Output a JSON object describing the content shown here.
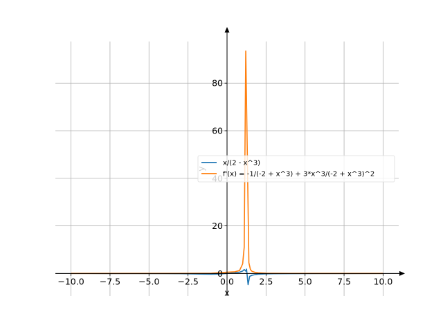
{
  "chart_data": {
    "type": "line",
    "title": "",
    "xlabel": "x",
    "ylabel": "y",
    "xlim": [
      -11.0,
      11.0
    ],
    "ylim": [
      -9.5,
      101
    ],
    "grid": true,
    "legend_position": "center-right",
    "x_ticks": [
      -10,
      -7.5,
      -5,
      -2.5,
      0,
      2.5,
      5,
      7.5,
      10
    ],
    "x_tick_labels": [
      "−10.0",
      "−7.5",
      "−5.0",
      "−2.5",
      "0.0",
      "2.5",
      "5.0",
      "7.5",
      "10.0"
    ],
    "y_ticks": [
      0,
      20,
      40,
      60,
      80
    ],
    "y_tick_labels": [
      "0",
      "20",
      "40",
      "60",
      "80"
    ],
    "series": [
      {
        "name": "x/(2 - x^3)",
        "color": "#1f77b4",
        "x": [
          -10,
          -8,
          -6,
          -4,
          -3,
          -2,
          -1.5,
          -1,
          -0.5,
          0,
          0.5,
          0.8,
          1.0,
          1.1,
          1.2,
          1.25,
          1.35,
          1.45,
          1.6,
          1.8,
          2.0,
          2.5,
          3,
          4,
          6,
          8,
          10
        ],
        "y": [
          -0.01,
          -0.016,
          -0.028,
          -0.061,
          -0.103,
          -0.2,
          -0.28,
          -0.333,
          -0.235,
          0,
          0.267,
          0.536,
          1.0,
          1.648,
          1.0,
          1.8,
          -4.7,
          -1.2,
          -0.77,
          -0.49,
          -0.333,
          -0.18,
          -0.12,
          -0.065,
          -0.028,
          -0.016,
          -0.01
        ]
      },
      {
        "name": "f'(x) = -1/(-2 + x^3) + 3*x^3/(-2 + x^3)^2",
        "color": "#ff7f0e",
        "x": [
          -10,
          -6,
          -4,
          -2,
          -1,
          0,
          0.5,
          0.8,
          1.0,
          1.1,
          1.2,
          1.3,
          1.4,
          1.5,
          1.6,
          1.8,
          2.0,
          2.5,
          3,
          4,
          6,
          10
        ],
        "y": [
          0.0,
          0.0,
          0.01,
          0.03,
          0.07,
          0.5,
          0.7,
          1.2,
          4.0,
          11.0,
          93.5,
          50.0,
          4.5,
          1.6,
          0.9,
          0.45,
          0.25,
          0.1,
          0.05,
          0.02,
          0.005,
          0.0
        ]
      }
    ]
  }
}
